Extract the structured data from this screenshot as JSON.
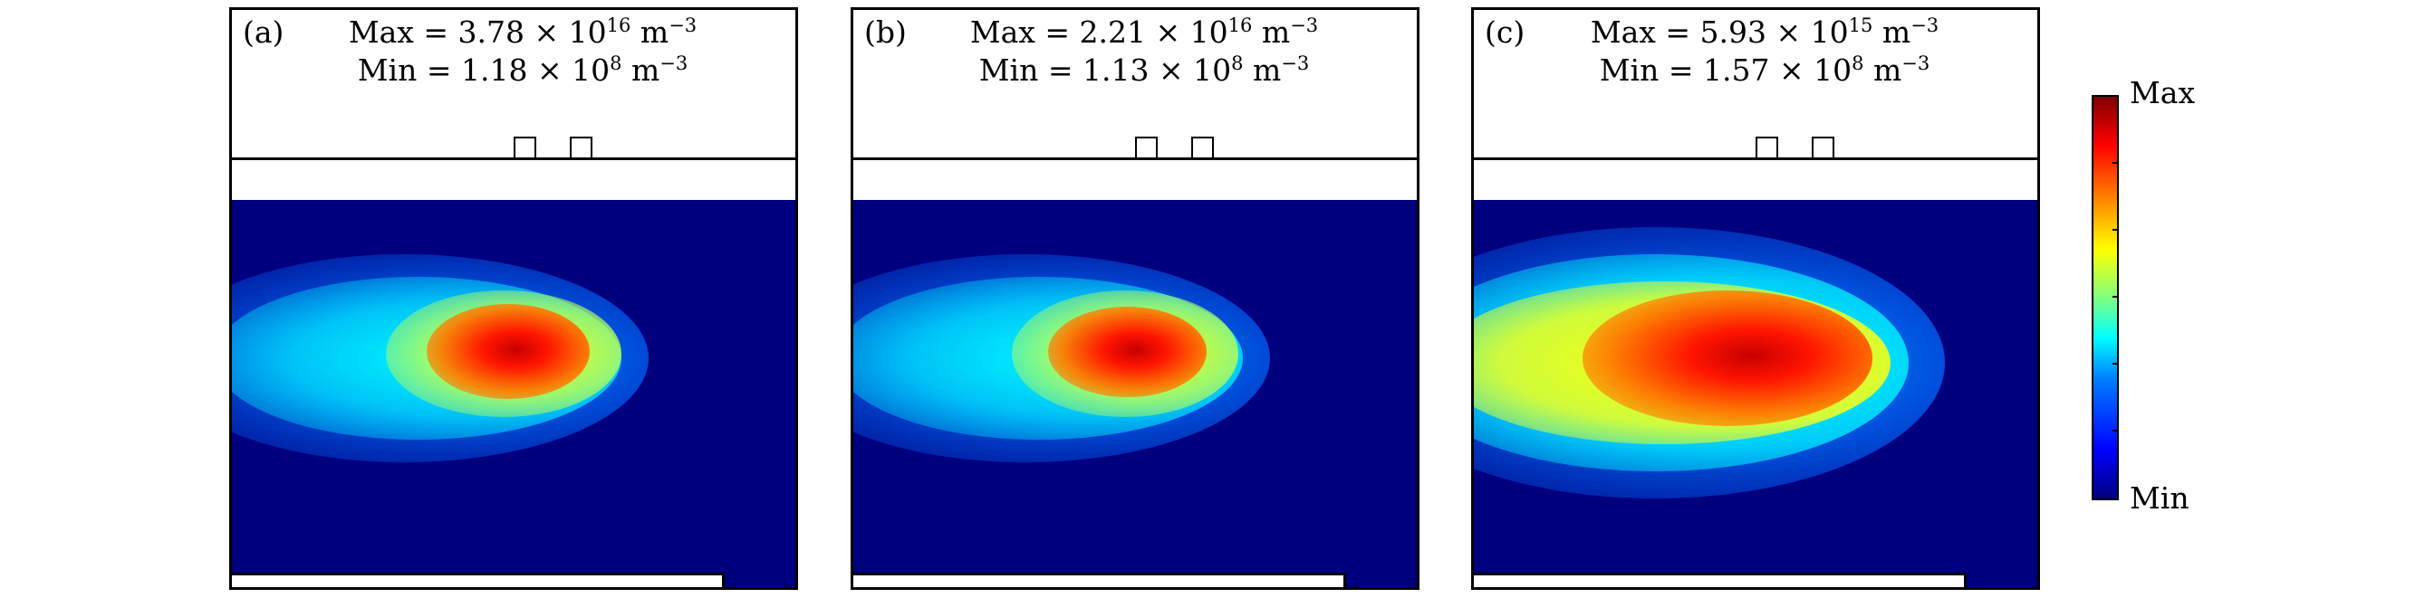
{
  "panels": [
    {
      "letter": "(a)",
      "max_prefix": "Max = 3.78 × 10",
      "max_exp": "16",
      "max_unit": " m",
      "max_unit_exp": "−3",
      "min_prefix": "Min = 1.18 × 10",
      "min_exp": "8",
      "min_unit": " m",
      "min_unit_exp": "−3"
    },
    {
      "letter": "(b)",
      "max_prefix": "Max = 2.21 × 10",
      "max_exp": "16",
      "max_unit": " m",
      "max_unit_exp": "−3",
      "min_prefix": "Min = 1.13 × 10",
      "min_exp": "8",
      "min_unit": " m",
      "min_unit_exp": "−3"
    },
    {
      "letter": "(c)",
      "max_prefix": "Max = 5.93 × 10",
      "max_exp": "15",
      "max_unit": " m",
      "max_unit_exp": "−3",
      "min_prefix": "Min = 1.57 × 10",
      "min_exp": "8",
      "min_unit": " m",
      "min_unit_exp": "−3"
    }
  ],
  "colorbar": {
    "max_label": "Max",
    "min_label": "Min",
    "colormap": "jet",
    "low_color": "#00007f",
    "high_color": "#7f0000"
  }
}
